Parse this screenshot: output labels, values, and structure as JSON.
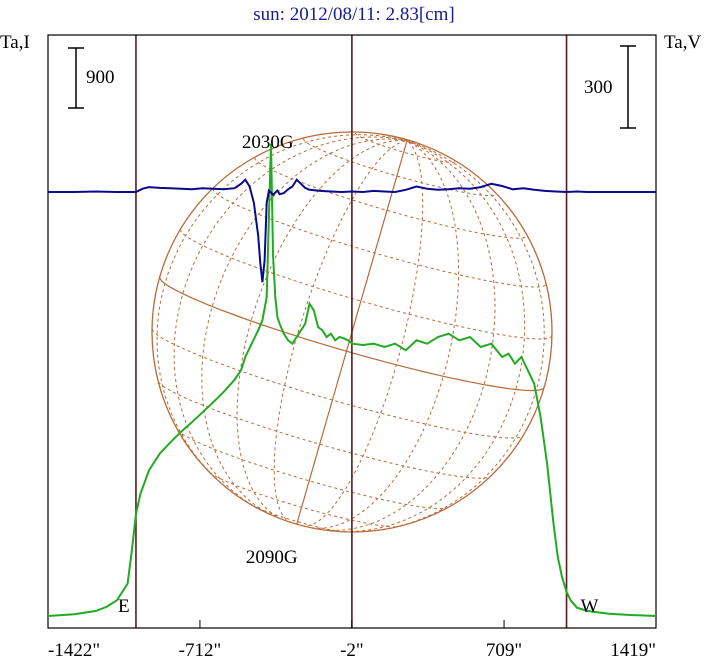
{
  "chart_data": {
    "type": "line",
    "title": "sun: 2012/08/11: 2.83[cm]",
    "left_axis_label": "Ta,I",
    "right_axis_label": "Ta,V",
    "left_scale_bar": "900",
    "right_scale_bar": "300",
    "x_ticks": [
      "-1422\"",
      "-712\"",
      "-2\"",
      "709\"",
      "1419\""
    ],
    "x_tick_values": [
      -1422,
      -712,
      -2,
      709,
      1419
    ],
    "xlim": [
      -1422,
      1419
    ],
    "limb_markers": [
      -1011,
      1001
    ],
    "limb_labels": [
      "E",
      "W"
    ],
    "annotations": [
      {
        "text": "2030G",
        "x": -386
      },
      {
        "text": "2090G",
        "x": -386
      }
    ],
    "colors": {
      "intensity": "#22aa22",
      "polarization": "#0a0a8c",
      "disk": "#b86a38",
      "frame": "#000000",
      "limb": "#5a1a1a"
    },
    "series": [
      {
        "name": "I",
        "color": "#22aa22",
        "x": [
          -1422,
          -1300,
          -1200,
          -1150,
          -1100,
          -1050,
          -1030,
          -1011,
          -990,
          -950,
          -900,
          -850,
          -800,
          -750,
          -700,
          -650,
          -600,
          -550,
          -520,
          -500,
          -470,
          -440,
          -420,
          -400,
          -390,
          -380,
          -370,
          -360,
          -350,
          -340,
          -320,
          -300,
          -280,
          -250,
          -220,
          -200,
          -180,
          -160,
          -140,
          -120,
          -100,
          -80,
          -60,
          -40,
          -20,
          0,
          50,
          100,
          150,
          200,
          250,
          300,
          350,
          400,
          450,
          500,
          550,
          600,
          650,
          700,
          730,
          760,
          790,
          820,
          850,
          880,
          910,
          940,
          960,
          980,
          1001,
          1020,
          1050,
          1100,
          1200,
          1300,
          1419
        ],
        "y": [
          15,
          40,
          90,
          150,
          250,
          500,
          1000,
          1550,
          1850,
          2200,
          2450,
          2620,
          2780,
          2920,
          3070,
          3220,
          3380,
          3560,
          3700,
          3900,
          4100,
          4300,
          4450,
          4800,
          6000,
          7100,
          5400,
          4800,
          4500,
          4400,
          4250,
          4150,
          4100,
          4250,
          4400,
          4700,
          4600,
          4350,
          4300,
          4200,
          4250,
          4150,
          4200,
          4180,
          4150,
          4100,
          4080,
          4100,
          4050,
          4100,
          4000,
          4150,
          4100,
          4200,
          4250,
          4150,
          4200,
          4050,
          4100,
          3900,
          3950,
          3800,
          3900,
          3700,
          3500,
          3000,
          2300,
          1400,
          900,
          600,
          380,
          250,
          140,
          90,
          50,
          30,
          15
        ]
      },
      {
        "name": "V",
        "color": "#0a0a8c",
        "x": [
          -1422,
          -1300,
          -1200,
          -1100,
          -1011,
          -980,
          -950,
          -900,
          -850,
          -800,
          -750,
          -700,
          -650,
          -600,
          -550,
          -520,
          -500,
          -480,
          -460,
          -440,
          -430,
          -420,
          -410,
          -400,
          -390,
          -380,
          -370,
          -360,
          -350,
          -340,
          -320,
          -300,
          -280,
          -260,
          -240,
          -220,
          -200,
          -150,
          -100,
          -50,
          0,
          50,
          100,
          150,
          200,
          250,
          300,
          350,
          400,
          450,
          500,
          550,
          600,
          650,
          700,
          750,
          800,
          850,
          900,
          950,
          1001,
          1050,
          1100,
          1200,
          1300,
          1419
        ],
        "y": [
          0,
          0,
          2,
          0,
          0,
          12,
          18,
          15,
          14,
          12,
          10,
          14,
          12,
          10,
          14,
          30,
          45,
          20,
          -40,
          -160,
          -260,
          -330,
          -250,
          -40,
          5,
          -2,
          -10,
          -2,
          5,
          -8,
          -4,
          10,
          20,
          45,
          30,
          15,
          8,
          4,
          2,
          0,
          2,
          0,
          4,
          2,
          0,
          8,
          20,
          12,
          8,
          10,
          14,
          12,
          18,
          30,
          22,
          10,
          14,
          8,
          4,
          2,
          0,
          2,
          0,
          0,
          0,
          0
        ]
      }
    ]
  }
}
